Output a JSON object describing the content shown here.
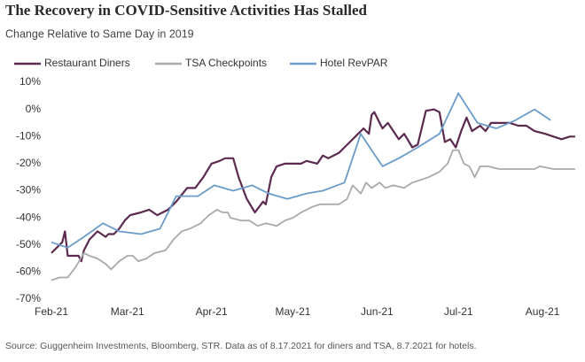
{
  "chart_data": {
    "type": "line",
    "title": "The Recovery in COVID-Sensitive Activities Has Stalled",
    "subtitle": "Change Relative to Same Day in 2019",
    "source": "Source: Guggenheim Investments, Bloomberg, STR. Data as of 8.17.2021 for diners and TSA, 8.7.2021 for hotels.",
    "xlim": [
      0,
      195
    ],
    "xticks": [
      {
        "value": 0,
        "label": "Feb-21"
      },
      {
        "value": 28,
        "label": "Mar-21"
      },
      {
        "value": 59,
        "label": "Apr-21"
      },
      {
        "value": 89,
        "label": "May-21"
      },
      {
        "value": 120,
        "label": "Jun-21"
      },
      {
        "value": 150,
        "label": "Jul-21"
      },
      {
        "value": 181,
        "label": "Aug-21"
      }
    ],
    "ylim": [
      -70,
      10
    ],
    "yticks": [
      {
        "value": 10,
        "label": "10%"
      },
      {
        "value": 0,
        "label": "0%"
      },
      {
        "value": -10,
        "label": "-10%"
      },
      {
        "value": -20,
        "label": "-20%"
      },
      {
        "value": -30,
        "label": "-30%"
      },
      {
        "value": -40,
        "label": "-40%"
      },
      {
        "value": -50,
        "label": "-50%"
      },
      {
        "value": -60,
        "label": "-60%"
      },
      {
        "value": -70,
        "label": "-70%"
      }
    ],
    "legend": "top",
    "series": [
      {
        "name": "Restaurant Diners",
        "color": "#5b2a4e",
        "x": [
          0,
          4,
          5,
          6,
          10,
          11,
          12,
          14,
          17,
          20,
          21,
          23,
          25,
          27,
          29,
          33,
          36,
          39,
          43,
          46,
          50,
          53,
          56,
          59,
          62,
          64,
          67,
          69,
          72,
          75,
          78,
          79,
          81,
          83,
          86,
          89,
          92,
          94,
          98,
          100,
          102,
          106,
          108,
          110,
          113,
          115,
          117,
          118,
          119,
          122,
          124,
          126,
          128,
          130,
          133,
          135,
          138,
          141,
          143,
          145,
          147,
          149,
          151,
          153,
          155,
          158,
          160,
          162,
          165,
          169,
          172,
          175,
          178,
          182,
          185,
          188,
          191,
          193
        ],
        "values": [
          -53,
          -49,
          -45,
          -54,
          -54,
          -56,
          -52,
          -48,
          -45,
          -47,
          -46,
          -46,
          -44,
          -41,
          -39,
          -38,
          -37,
          -39,
          -37,
          -34,
          -29,
          -29,
          -25,
          -20,
          -19,
          -18,
          -18,
          -25,
          -33,
          -38,
          -34,
          -35,
          -25,
          -21,
          -20,
          -20,
          -20,
          -19,
          -20,
          -17,
          -18,
          -16,
          -14,
          -12,
          -9,
          -7,
          -9,
          -2,
          -1,
          -7,
          -5,
          -8,
          -11,
          -9,
          -14,
          -13,
          -0.5,
          0,
          -1,
          -12,
          -11,
          -14,
          -8,
          -3,
          -8,
          -6,
          -8,
          -5,
          -5,
          -5,
          -6,
          -6,
          -8,
          -9,
          -10,
          -11,
          -10,
          -10
        ]
      },
      {
        "name": "TSA Checkpoints",
        "color": "#a9a9a9",
        "x": [
          0,
          3,
          6,
          9,
          12,
          14,
          17,
          20,
          22,
          25,
          28,
          30,
          32,
          35,
          38,
          42,
          45,
          48,
          51,
          55,
          58,
          61,
          63,
          65,
          66,
          70,
          73,
          76,
          79,
          83,
          86,
          89,
          92,
          96,
          99,
          102,
          106,
          109,
          111,
          114,
          116,
          118,
          121,
          123,
          126,
          130,
          133,
          136,
          139,
          143,
          146,
          148,
          150,
          152,
          154,
          156,
          158,
          161,
          165,
          172,
          178,
          180,
          185,
          190,
          193
        ],
        "values": [
          -63,
          -62,
          -62,
          -58,
          -53,
          -54,
          -55,
          -57,
          -59,
          -56,
          -54,
          -54,
          -56,
          -55,
          -53,
          -52,
          -48,
          -45,
          -44,
          -42,
          -39,
          -37,
          -38,
          -38,
          -40,
          -41,
          -41,
          -43,
          -42,
          -43,
          -41,
          -40,
          -38,
          -36,
          -35,
          -35,
          -35,
          -33,
          -28,
          -31,
          -27,
          -29,
          -27,
          -29,
          -28,
          -29,
          -27,
          -26,
          -25,
          -23,
          -20,
          -15,
          -15,
          -20,
          -21,
          -25,
          -21,
          -21,
          -22,
          -22,
          -22,
          -21,
          -22,
          -22,
          -22
        ]
      },
      {
        "name": "Hotel RevPAR",
        "color": "#6a9bc9",
        "x": [
          0,
          6,
          12,
          19,
          25,
          33,
          40,
          46,
          54,
          60,
          67,
          74,
          80,
          87,
          94,
          100,
          108,
          114,
          122,
          128,
          135,
          143,
          150,
          157,
          164,
          171,
          178,
          184
        ],
        "values": [
          -49,
          -51,
          -47,
          -42,
          -45,
          -46,
          -44,
          -32,
          -32,
          -28,
          -30,
          -28,
          -31,
          -33,
          -31,
          -30,
          -27,
          -9,
          -21,
          -18,
          -14,
          -9,
          6,
          -5,
          -7,
          -4,
          0,
          -4
        ]
      }
    ]
  }
}
